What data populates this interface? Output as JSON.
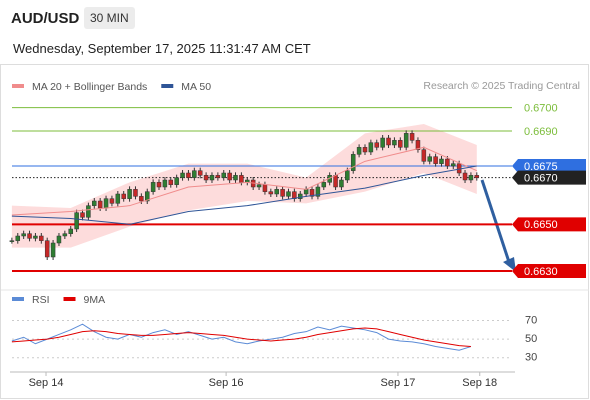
{
  "header": {
    "symbol": "AUD/USD",
    "timeframe": "30 MIN",
    "timestamp": "Wednesday, September 17, 2025 11:31:47 AM CET"
  },
  "chart_data": {
    "type": "candlestick",
    "legend": [
      {
        "name": "MA 20 + Bollinger Bands",
        "color": "#f08c8c"
      },
      {
        "name": "MA 50",
        "color": "#2f5597"
      }
    ],
    "source": "Research © 2025 Trading Central",
    "xlim": [
      -1,
      86
    ],
    "xticks": [
      {
        "value": 5.8,
        "label": "Sep 14"
      },
      {
        "value": 36.4,
        "label": "Sep 16"
      },
      {
        "value": 65.6,
        "label": "Sep 17"
      },
      {
        "value": 79.5,
        "label": "Sep 18"
      }
    ],
    "ylim": [
      0.6624,
      0.6714
    ],
    "up_color": "#2e7d32",
    "down_color": "#c62828",
    "close": [
      0.6643,
      0.6645,
      0.6646,
      0.6644,
      0.6645,
      0.6643,
      0.6636,
      0.6642,
      0.6645,
      0.6646,
      0.6648,
      0.6655,
      0.6653,
      0.6658,
      0.666,
      0.6657,
      0.6661,
      0.6659,
      0.6663,
      0.6661,
      0.6665,
      0.6662,
      0.666,
      0.6664,
      0.6668,
      0.6666,
      0.6669,
      0.6667,
      0.667,
      0.6672,
      0.667,
      0.6673,
      0.6671,
      0.6669,
      0.6671,
      0.667,
      0.6672,
      0.6669,
      0.6671,
      0.6668,
      0.6669,
      0.6666,
      0.6667,
      0.6664,
      0.6663,
      0.6665,
      0.6662,
      0.6664,
      0.6661,
      0.6663,
      0.6665,
      0.6662,
      0.6666,
      0.6668,
      0.6671,
      0.6666,
      0.6669,
      0.6673,
      0.668,
      0.6683,
      0.6681,
      0.6685,
      0.6683,
      0.6687,
      0.6684,
      0.6686,
      0.6683,
      0.6689,
      0.6686,
      0.6682,
      0.6677,
      0.6679,
      0.6676,
      0.6678,
      0.6675,
      0.6676,
      0.6672,
      0.6669,
      0.6671,
      0.667
    ],
    "ma_x": [
      0,
      10,
      20,
      30,
      40,
      50,
      60,
      70,
      79
    ],
    "ma20": [
      0.6654,
      0.66555,
      0.6658,
      0.6666,
      0.6668,
      0.6665,
      0.6677,
      0.6683,
      0.6673
    ],
    "ma50": [
      0.66535,
      0.66525,
      0.665,
      0.66555,
      0.6658,
      0.6662,
      0.66655,
      0.6671,
      0.6675
    ],
    "band_upper": [
      0.6658,
      0.6657,
      0.6668,
      0.6676,
      0.6676,
      0.667,
      0.6689,
      0.6693,
      0.6684
    ],
    "band_lower": [
      0.664,
      0.664,
      0.6649,
      0.6656,
      0.666,
      0.6659,
      0.6664,
      0.6672,
      0.6663
    ],
    "band_color": "#fddcdc",
    "levels": [
      {
        "value": 0.67,
        "label": "0.6700",
        "color": "#7cbd3b",
        "style": "thin",
        "box": false
      },
      {
        "value": 0.669,
        "label": "0.6690",
        "color": "#7cbd3b",
        "style": "thin",
        "box": false
      },
      {
        "value": 0.6675,
        "label": "0.6675",
        "color": "#2f6fe0",
        "style": "thin",
        "box": true
      },
      {
        "value": 0.667,
        "label": "0.6670",
        "color": "#222222",
        "style": "dotted",
        "box": true
      },
      {
        "value": 0.665,
        "label": "0.6650",
        "color": "#e00000",
        "style": "thick",
        "box": true
      },
      {
        "value": 0.663,
        "label": "0.6630",
        "color": "#e00000",
        "style": "thick",
        "box": true
      }
    ],
    "rsi": {
      "legend": [
        {
          "name": "RSI",
          "color": "#5b8bd6"
        },
        {
          "name": "9MA",
          "color": "#e00000"
        }
      ],
      "ylim": [
        20,
        77
      ],
      "yticks": [
        70,
        50,
        30
      ],
      "x": [
        0,
        2,
        4,
        6,
        8,
        10,
        12,
        14,
        16,
        18,
        20,
        22,
        24,
        26,
        28,
        30,
        32,
        34,
        36,
        38,
        40,
        42,
        44,
        46,
        48,
        50,
        52,
        54,
        56,
        58,
        60,
        62,
        64,
        66,
        68,
        70,
        72,
        74,
        76,
        78
      ],
      "values": [
        48,
        52,
        45,
        50,
        55,
        60,
        66,
        58,
        52,
        50,
        55,
        52,
        57,
        60,
        55,
        58,
        54,
        50,
        52,
        47,
        45,
        48,
        50,
        52,
        56,
        58,
        63,
        60,
        64,
        62,
        60,
        57,
        50,
        48,
        47,
        45,
        42,
        40,
        38,
        42
      ],
      "ma9": [
        47,
        48,
        49,
        50,
        52,
        55,
        58,
        59,
        58,
        56,
        55,
        54,
        54,
        55,
        56,
        57,
        56,
        55,
        54,
        52,
        50,
        49,
        48,
        49,
        50,
        52,
        55,
        57,
        59,
        61,
        62,
        61,
        58,
        55,
        52,
        49,
        47,
        45,
        43,
        42
      ]
    }
  }
}
